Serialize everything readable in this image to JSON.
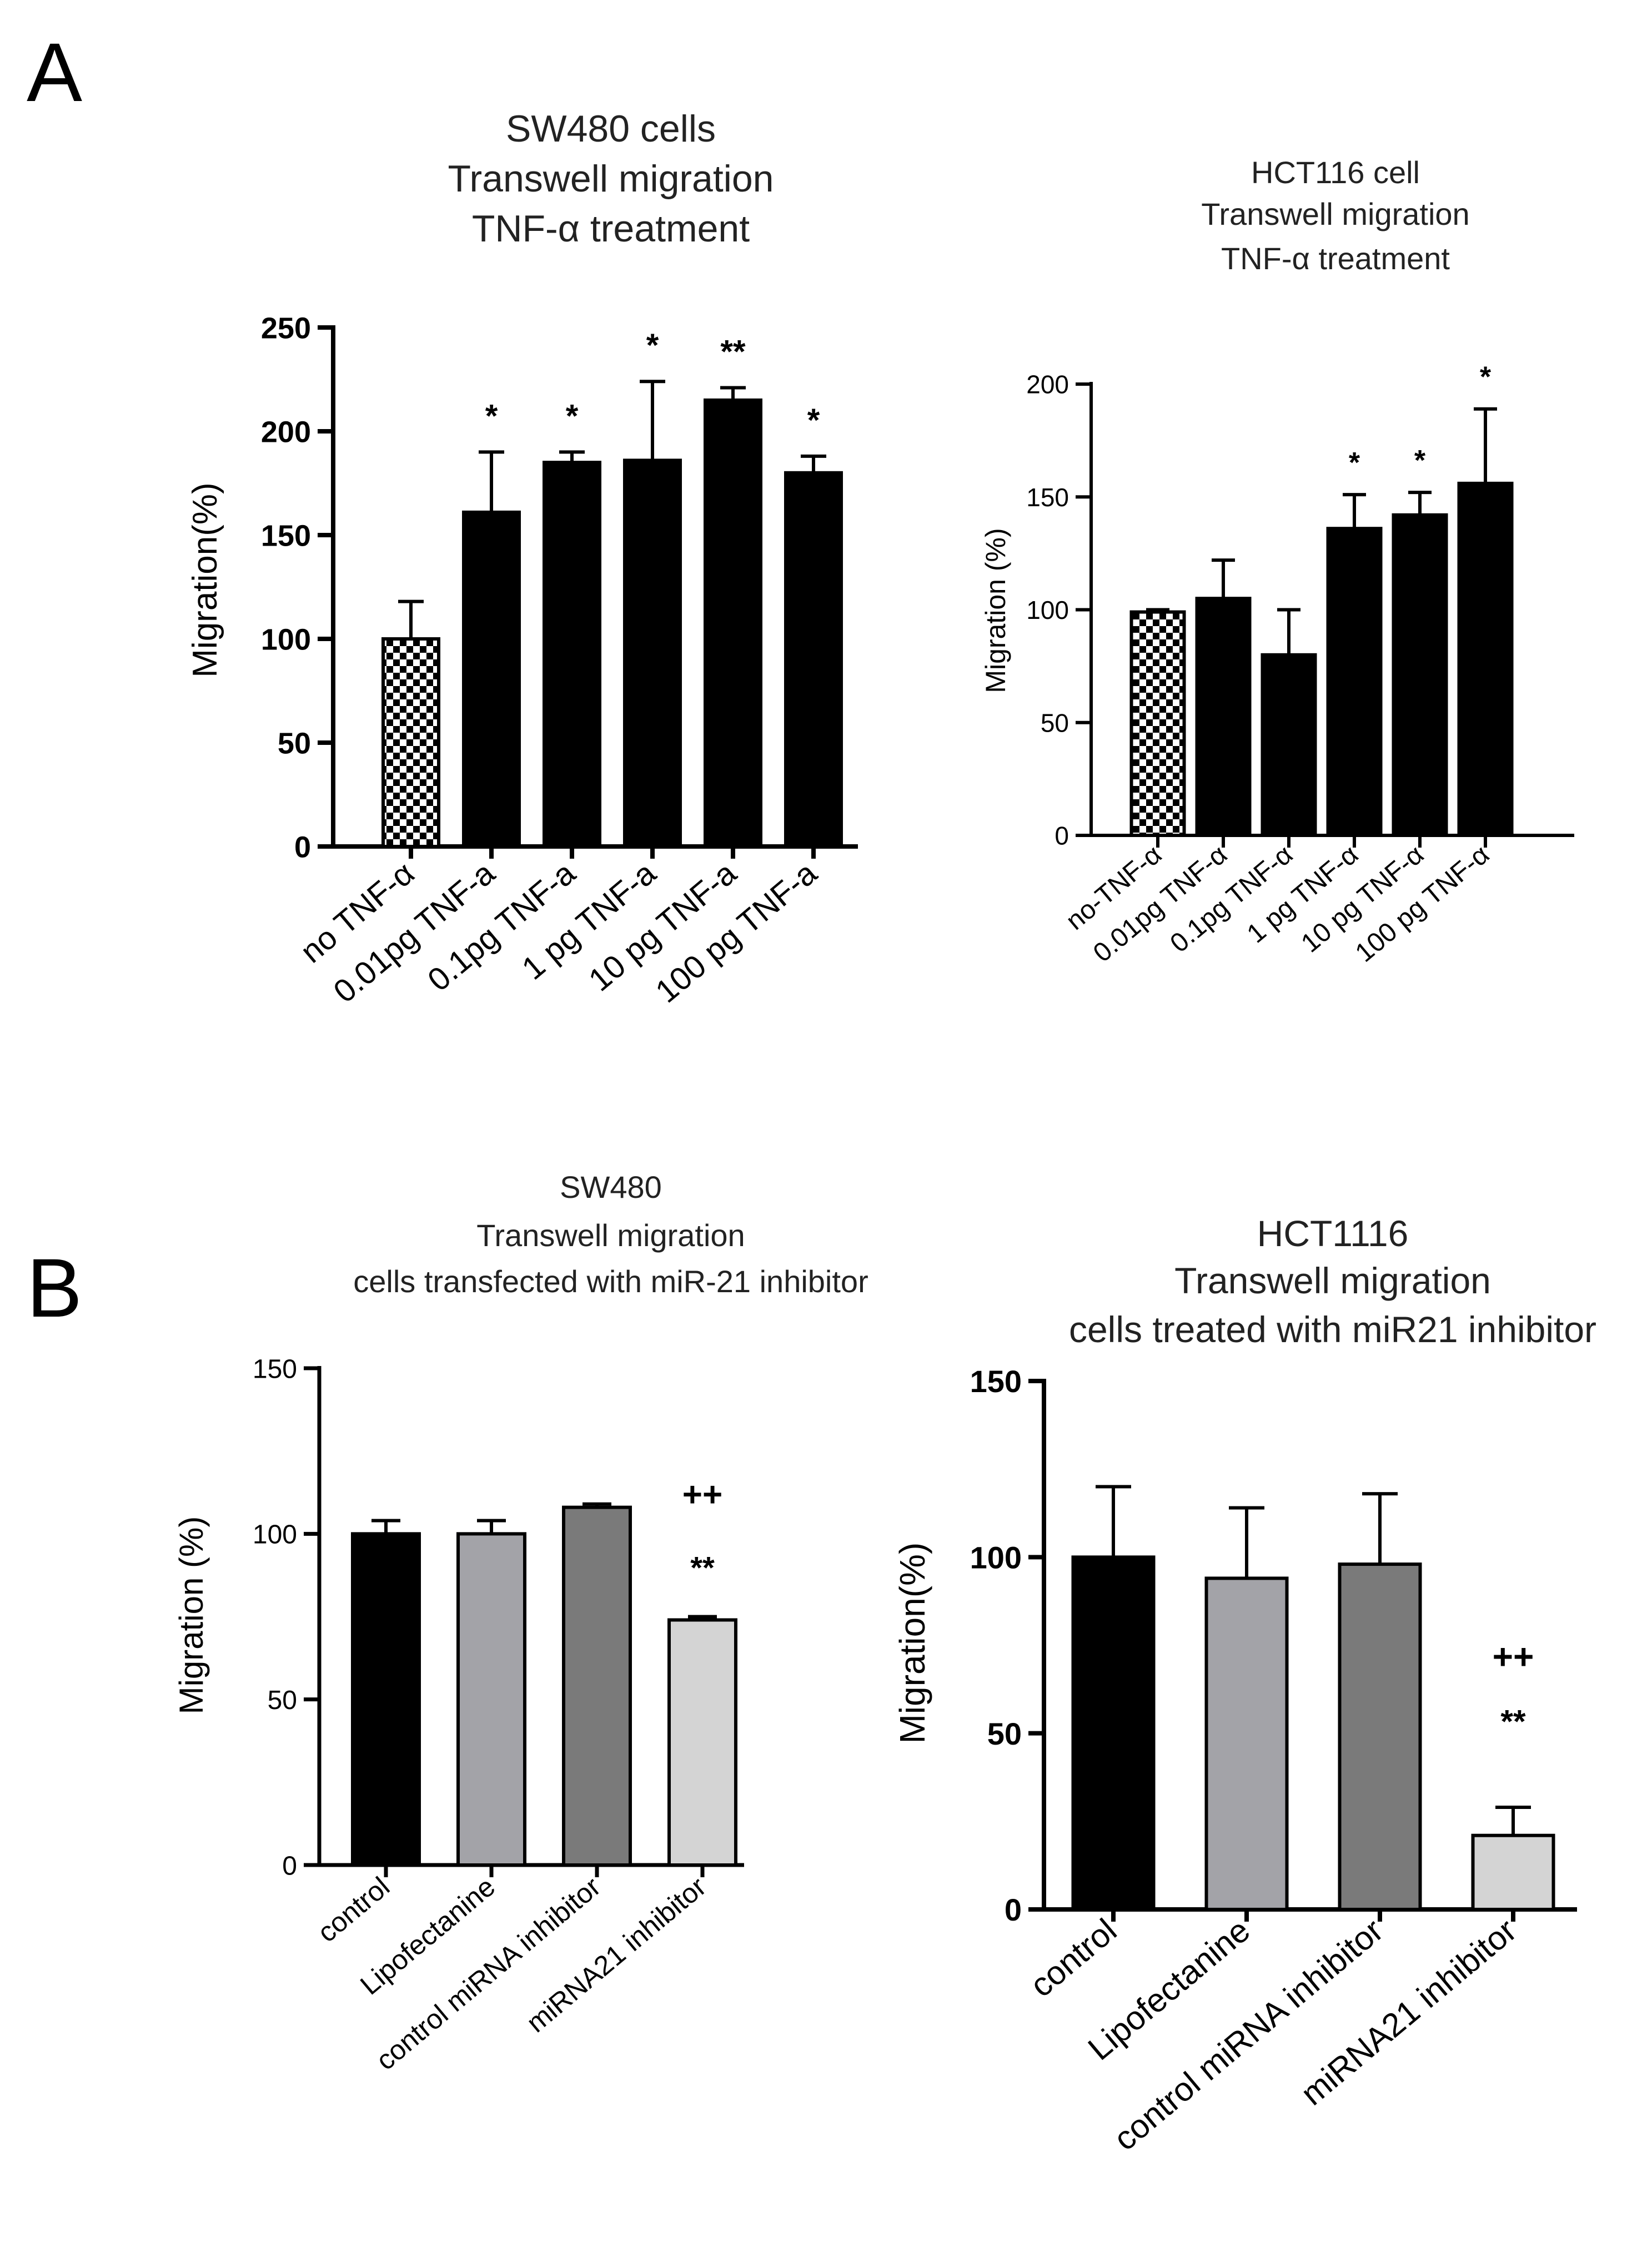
{
  "panels": {
    "a": "A",
    "b": "B"
  },
  "chart_data": [
    {
      "id": "a1",
      "type": "bar",
      "title": [
        "SW480 cells",
        "Transwell migration",
        "TNF-α treatment"
      ],
      "ylabel": "Migration(%)",
      "ylim": [
        0,
        250
      ],
      "yticks": [
        0,
        50,
        100,
        150,
        200,
        250
      ],
      "categories": [
        "no TNF-α",
        "0.01pg TNF-a",
        "0.1pg TNF-a",
        "1 pg TNF-a",
        "10 pg TNF-a",
        "100 pg TNF-a"
      ],
      "values": [
        100,
        161,
        185,
        186,
        215,
        180
      ],
      "errors": [
        18,
        29,
        5,
        38,
        6,
        8
      ],
      "annotations": [
        "",
        "*",
        "*",
        "*",
        "**",
        "*"
      ],
      "fills": [
        "checker",
        "#000000",
        "#000000",
        "#000000",
        "#000000",
        "#000000"
      ]
    },
    {
      "id": "a2",
      "type": "bar",
      "title": [
        "HCT116 cell",
        "Transwell migration",
        "TNF-α treatment"
      ],
      "ylabel": "Migration (%)",
      "ylim": [
        0,
        200
      ],
      "yticks": [
        0,
        50,
        100,
        150,
        200
      ],
      "categories": [
        "no-TNF-α",
        "0.01pg TNF-α",
        "0.1pg TNF-α",
        "1 pg TNF-α",
        "10 pg TNF-α",
        "100 pg TNF-α"
      ],
      "values": [
        99,
        105,
        80,
        136,
        142,
        156
      ],
      "errors": [
        1,
        17,
        20,
        15,
        10,
        33
      ],
      "annotations": [
        "",
        "",
        "",
        "*",
        "*",
        "*"
      ],
      "fills": [
        "checker",
        "#000000",
        "#000000",
        "#000000",
        "#000000",
        "#000000"
      ]
    },
    {
      "id": "b1",
      "type": "bar",
      "title": [
        "SW480",
        "Transwell migration",
        "cells transfected with miR-21 inhibitor"
      ],
      "ylabel": "Migration (%)",
      "ylim": [
        0,
        150
      ],
      "yticks": [
        0,
        50,
        100,
        150
      ],
      "categories": [
        "control",
        "Lipofectanine",
        "control miRNA inhibitor",
        "miRNA21 inhibitor"
      ],
      "values": [
        100,
        100,
        108,
        74
      ],
      "errors": [
        4,
        4,
        1,
        1
      ],
      "annotations": [
        "",
        "",
        "",
        "**"
      ],
      "annotations_top": [
        "",
        "",
        "",
        "++"
      ],
      "fills": [
        "#000000",
        "#a3a3a8",
        "#7a7a7a",
        "#d4d4d4"
      ]
    },
    {
      "id": "b2",
      "type": "bar",
      "title": [
        "HCT1116",
        "Transwell migration",
        "cells treated with  miR21 inhibitor"
      ],
      "ylabel": "Migration(%)",
      "ylim": [
        0,
        150
      ],
      "yticks": [
        0,
        50,
        100,
        150
      ],
      "categories": [
        "control",
        "Lipofectanine",
        "control miRNA inhibitor",
        "miRNA21 inhibitor"
      ],
      "values": [
        100,
        94,
        98,
        21
      ],
      "errors": [
        20,
        20,
        20,
        8
      ],
      "annotations": [
        "",
        "",
        "",
        "**"
      ],
      "annotations_top": [
        "",
        "",
        "",
        "++"
      ],
      "fills": [
        "#000000",
        "#a3a3a8",
        "#7a7a7a",
        "#d4d4d4"
      ]
    }
  ]
}
